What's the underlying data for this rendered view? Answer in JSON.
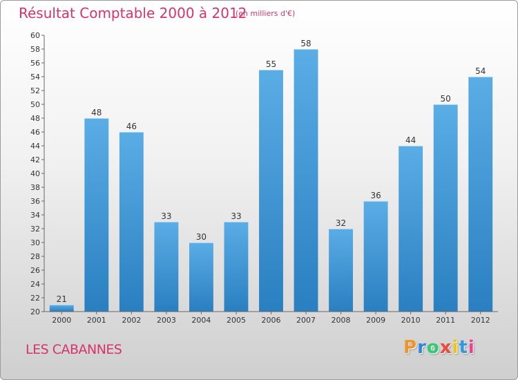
{
  "chart_data": {
    "type": "bar",
    "title": "Résultat Comptable 2000 à 2012",
    "subtitle": "(en milliers d'€)",
    "categories": [
      "2000",
      "2001",
      "2002",
      "2003",
      "2004",
      "2005",
      "2006",
      "2007",
      "2008",
      "2009",
      "2010",
      "2011",
      "2012"
    ],
    "values": [
      21,
      48,
      46,
      33,
      30,
      33,
      55,
      58,
      32,
      36,
      44,
      50,
      54
    ],
    "ylim": [
      20,
      60
    ],
    "ytick_step": 2,
    "xlabel": "",
    "ylabel": "",
    "grid": false
  },
  "footer": {
    "place": "LES CABANNES",
    "logo_letters": [
      "P",
      "r",
      "o",
      "x",
      "i",
      "t",
      "i"
    ]
  },
  "colors": {
    "title": "#d6336c",
    "bar_light": "#5aade5",
    "bar_dark": "#2a7fc0",
    "logo": [
      "#f0932b",
      "#2e86de",
      "#2ecc71",
      "#e74c3c",
      "#f1c40f",
      "#3498db",
      "#e84393"
    ]
  }
}
